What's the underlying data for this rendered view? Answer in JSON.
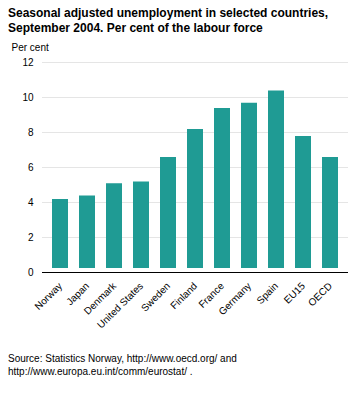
{
  "chart_data": {
    "type": "bar",
    "title": "Seasonal adjusted unemployment in selected countries, September 2004. Per cent of the labour force",
    "y_label": "Per cent",
    "source": "Source: Statistics Norway, http://www.oecd.org/ and http://www.europa.eu.int/comm/eurostat/ .",
    "categories": [
      "Norway",
      "Japan",
      "Denmark",
      "United States",
      "Sweden",
      "Finland",
      "France",
      "Germany",
      "Spain",
      "EU15",
      "OECD"
    ],
    "values": [
      4.4,
      4.6,
      5.3,
      5.4,
      6.8,
      8.4,
      9.6,
      9.9,
      10.6,
      8.0,
      6.8
    ],
    "color": "#1f9b94",
    "ylim": [
      0,
      12
    ],
    "yticks": [
      0,
      2,
      4,
      6,
      8,
      10,
      12
    ],
    "grid": true
  }
}
